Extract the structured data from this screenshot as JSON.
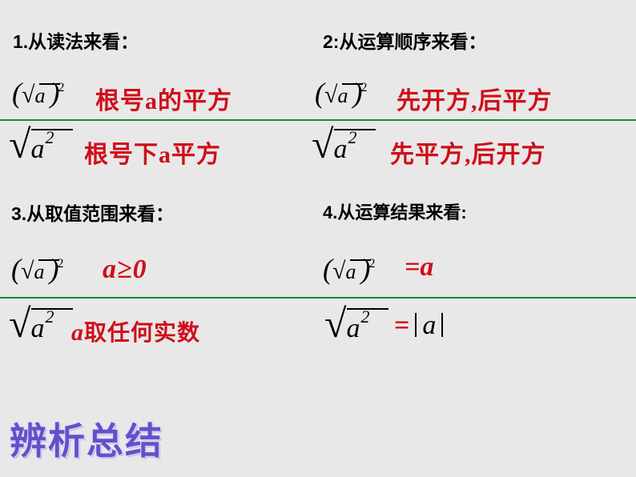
{
  "h1": "1.从读法来看：",
  "h2": "2:从运算顺序来看：",
  "h3": "3.从取值范围来看：",
  "h4": "4.从运算结果来看:",
  "r1": "根号a的平方",
  "r2": "先开方,后平方",
  "r3": "根号下a平方",
  "r4": "先平方,后开方",
  "r5": "a≥0",
  "r6": "a取任何实数",
  "eq1": "=a",
  "eq2pre": "=",
  "eq2a": "a",
  "footer": "辨析总结",
  "a": "a",
  "colors": {
    "green": "#108a36",
    "red": "#cf0e1a",
    "purple": "#6450ca",
    "bg": "#e8e8e8"
  }
}
